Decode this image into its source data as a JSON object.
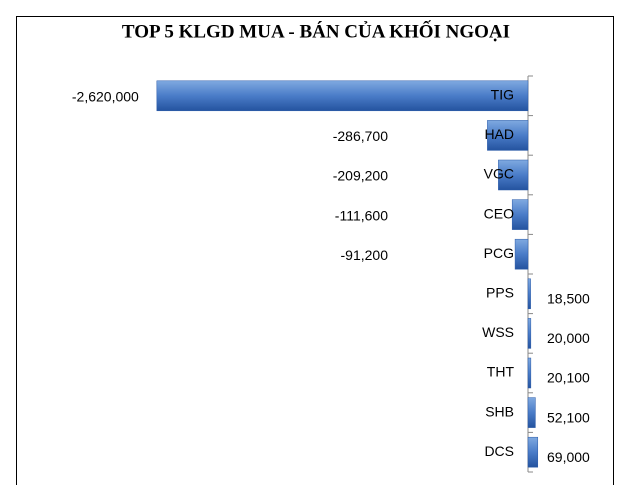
{
  "chart_data": {
    "type": "bar",
    "orientation": "horizontal",
    "title": "TOP 5 KLGD MUA - BÁN CỦA KHỐI NGOẠI",
    "categories": [
      "TIG",
      "HAD",
      "VGC",
      "CEO",
      "PCG",
      "PPS",
      "WSS",
      "THT",
      "SHB",
      "DCS"
    ],
    "values": [
      -2620000,
      -286700,
      -209200,
      -111600,
      -91200,
      18500,
      20000,
      20100,
      52100,
      69000
    ],
    "value_labels": [
      "-2,620,000",
      "-286,700",
      "-209,200",
      "-111,600",
      "-91,200",
      "18,500",
      "20,000",
      "20,100",
      "52,100",
      "69,000"
    ],
    "color": "#4a7cc8",
    "xlim": [
      -3600000,
      600000
    ]
  }
}
